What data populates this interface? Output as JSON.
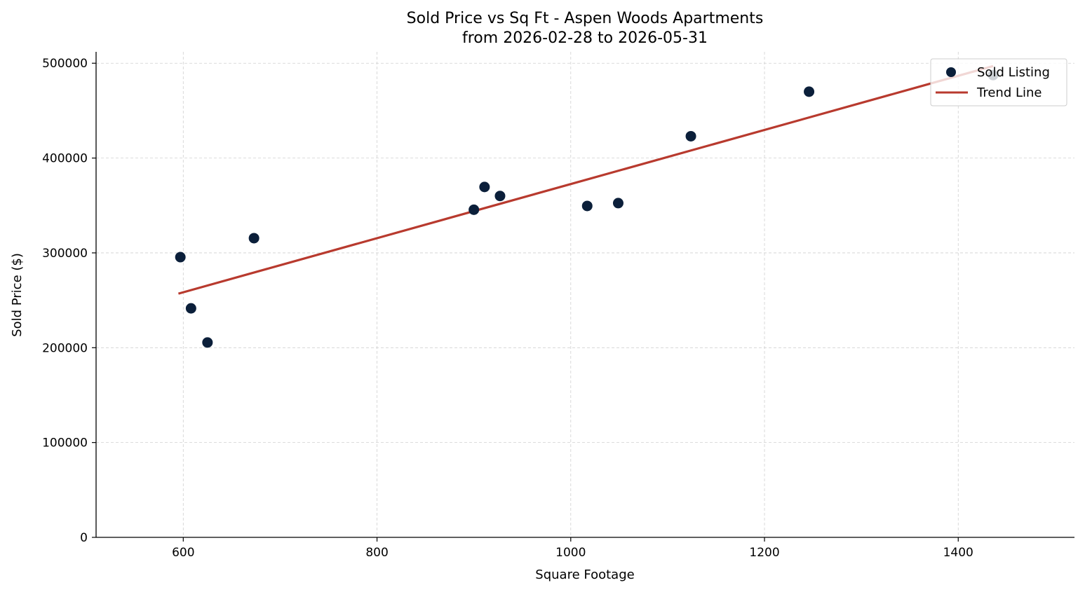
{
  "chart_data": {
    "type": "scatter",
    "title": "Sold Price vs Sq Ft - Aspen Woods Apartments",
    "subtitle": "from 2026-02-28 to 2026-05-31",
    "xlabel": "Square Footage",
    "ylabel": "Sold Price ($)",
    "xlim": [
      510,
      1520
    ],
    "ylim": [
      0,
      512000
    ],
    "xticks": [
      600,
      800,
      1000,
      1200,
      1400
    ],
    "yticks": [
      0,
      100000,
      200000,
      300000,
      400000,
      500000
    ],
    "grid": true,
    "legend_position": "top-right",
    "colors": {
      "points": "#0b1f3a",
      "trend": "#b83a2e"
    },
    "series": [
      {
        "name": "Sold Listing",
        "kind": "scatter",
        "points": [
          {
            "x": 597,
            "y": 295500
          },
          {
            "x": 608,
            "y": 241500
          },
          {
            "x": 625,
            "y": 205500
          },
          {
            "x": 673,
            "y": 315500
          },
          {
            "x": 900,
            "y": 345500
          },
          {
            "x": 911,
            "y": 369500
          },
          {
            "x": 927,
            "y": 360000
          },
          {
            "x": 1017,
            "y": 349500
          },
          {
            "x": 1049,
            "y": 352500
          },
          {
            "x": 1124,
            "y": 423000
          },
          {
            "x": 1246,
            "y": 470000
          },
          {
            "x": 1436,
            "y": 487500
          }
        ]
      },
      {
        "name": "Trend Line",
        "kind": "line",
        "points": [
          {
            "x": 595,
            "y": 257000
          },
          {
            "x": 1436,
            "y": 497000
          }
        ]
      }
    ]
  }
}
